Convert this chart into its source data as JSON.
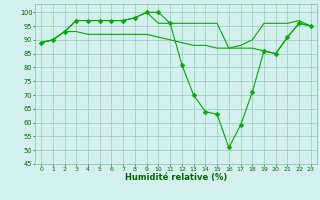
{
  "xlabel": "Humidité relative (%)",
  "background_color": "#d4f0ee",
  "grid_color": "#99ccbb",
  "line_color": "#00aa00",
  "xlim": [
    -0.5,
    23.5
  ],
  "ylim": [
    45,
    103
  ],
  "yticks": [
    45,
    50,
    55,
    60,
    65,
    70,
    75,
    80,
    85,
    90,
    95,
    100
  ],
  "xticks": [
    0,
    1,
    2,
    3,
    4,
    5,
    6,
    7,
    8,
    9,
    10,
    11,
    12,
    13,
    14,
    15,
    16,
    17,
    18,
    19,
    20,
    21,
    22,
    23
  ],
  "series": [
    {
      "x": [
        0,
        1,
        2,
        3,
        4,
        5,
        6,
        7,
        8,
        9,
        10,
        11,
        12,
        13,
        14,
        15,
        16,
        17,
        18,
        19,
        20,
        21,
        22,
        23
      ],
      "y": [
        89,
        90,
        93,
        97,
        97,
        97,
        97,
        97,
        98,
        100,
        100,
        96,
        81,
        70,
        64,
        63,
        51,
        59,
        71,
        86,
        85,
        91,
        96,
        95
      ],
      "marker": "D",
      "markersize": 2.5
    },
    {
      "x": [
        0,
        1,
        2,
        3,
        4,
        5,
        6,
        7,
        8,
        9,
        10,
        11,
        12,
        13,
        14,
        15,
        16,
        17,
        18,
        19,
        20,
        21,
        22,
        23
      ],
      "y": [
        89,
        90,
        93,
        97,
        97,
        97,
        97,
        97,
        98,
        100,
        96,
        96,
        96,
        96,
        96,
        96,
        87,
        88,
        90,
        96,
        96,
        96,
        97,
        95
      ],
      "marker": null,
      "markersize": 0
    },
    {
      "x": [
        0,
        1,
        2,
        3,
        4,
        5,
        6,
        7,
        8,
        9,
        10,
        11,
        12,
        13,
        14,
        15,
        16,
        17,
        18,
        19,
        20,
        21,
        22,
        23
      ],
      "y": [
        89,
        90,
        93,
        93,
        92,
        92,
        92,
        92,
        92,
        92,
        91,
        90,
        89,
        88,
        88,
        87,
        87,
        87,
        87,
        86,
        85,
        91,
        96,
        95
      ],
      "marker": null,
      "markersize": 0
    }
  ]
}
